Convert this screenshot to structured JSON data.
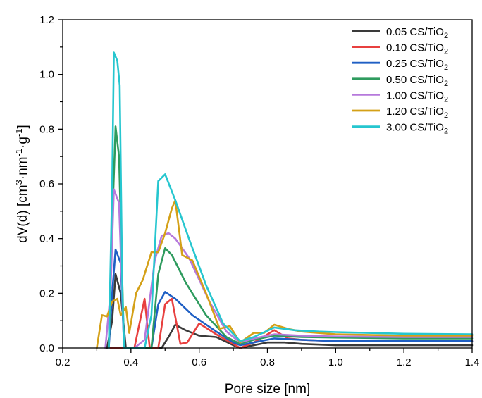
{
  "chart_data": {
    "type": "line",
    "xlabel": "Pore size [nm]",
    "ylabel": "dV(d) [cm³·nm⁻¹·g⁻¹]",
    "xlim": [
      0.2,
      1.4
    ],
    "ylim": [
      0.0,
      1.2
    ],
    "xticks": [
      "0.2",
      "0.4",
      "0.6",
      "0.8",
      "1.0",
      "1.2",
      "1.4"
    ],
    "yticks": [
      "0.0",
      "0.2",
      "0.4",
      "0.6",
      "0.8",
      "1.0",
      "1.2"
    ],
    "legend_position": "top-right",
    "grid": false,
    "series": [
      {
        "name": "0.05 CS/TiO2",
        "color": "#3a3a3a",
        "points": [
          [
            0.33,
            0.0
          ],
          [
            0.345,
            0.1
          ],
          [
            0.355,
            0.27
          ],
          [
            0.37,
            0.2
          ],
          [
            0.385,
            0.0
          ],
          [
            0.43,
            0.0
          ],
          [
            0.46,
            0.0
          ],
          [
            0.49,
            0.0
          ],
          [
            0.51,
            0.04
          ],
          [
            0.53,
            0.085
          ],
          [
            0.56,
            0.065
          ],
          [
            0.6,
            0.045
          ],
          [
            0.65,
            0.04
          ],
          [
            0.7,
            0.01
          ],
          [
            0.72,
            0.0
          ],
          [
            0.76,
            0.01
          ],
          [
            0.8,
            0.02
          ],
          [
            0.85,
            0.02
          ],
          [
            0.9,
            0.015
          ],
          [
            1.0,
            0.01
          ],
          [
            1.2,
            0.01
          ],
          [
            1.4,
            0.01
          ]
        ]
      },
      {
        "name": "0.10 CS/TiO2",
        "color": "#e8403f",
        "points": [
          [
            0.34,
            0.0
          ],
          [
            0.355,
            0.0
          ],
          [
            0.41,
            0.0
          ],
          [
            0.44,
            0.18
          ],
          [
            0.455,
            0.0
          ],
          [
            0.48,
            0.0
          ],
          [
            0.5,
            0.16
          ],
          [
            0.52,
            0.18
          ],
          [
            0.545,
            0.015
          ],
          [
            0.565,
            0.02
          ],
          [
            0.6,
            0.09
          ],
          [
            0.65,
            0.05
          ],
          [
            0.7,
            0.015
          ],
          [
            0.72,
            0.0
          ],
          [
            0.76,
            0.02
          ],
          [
            0.82,
            0.065
          ],
          [
            0.86,
            0.035
          ],
          [
            0.9,
            0.03
          ],
          [
            1.0,
            0.025
          ],
          [
            1.2,
            0.025
          ],
          [
            1.4,
            0.025
          ]
        ]
      },
      {
        "name": "0.25 CS/TiO2",
        "color": "#1f5fc4",
        "points": [
          [
            0.335,
            0.0
          ],
          [
            0.345,
            0.2
          ],
          [
            0.355,
            0.36
          ],
          [
            0.37,
            0.31
          ],
          [
            0.38,
            0.0
          ],
          [
            0.43,
            0.0
          ],
          [
            0.46,
            0.0
          ],
          [
            0.48,
            0.16
          ],
          [
            0.5,
            0.205
          ],
          [
            0.53,
            0.18
          ],
          [
            0.58,
            0.12
          ],
          [
            0.65,
            0.06
          ],
          [
            0.7,
            0.02
          ],
          [
            0.72,
            0.01
          ],
          [
            0.76,
            0.02
          ],
          [
            0.82,
            0.035
          ],
          [
            0.9,
            0.03
          ],
          [
            1.0,
            0.025
          ],
          [
            1.2,
            0.025
          ],
          [
            1.4,
            0.025
          ]
        ]
      },
      {
        "name": "0.50 CS/TiO2",
        "color": "#2e9b5e",
        "points": [
          [
            0.335,
            0.0
          ],
          [
            0.345,
            0.45
          ],
          [
            0.355,
            0.81
          ],
          [
            0.365,
            0.7
          ],
          [
            0.38,
            0.0
          ],
          [
            0.43,
            0.0
          ],
          [
            0.46,
            0.0
          ],
          [
            0.48,
            0.27
          ],
          [
            0.5,
            0.365
          ],
          [
            0.52,
            0.34
          ],
          [
            0.56,
            0.24
          ],
          [
            0.62,
            0.12
          ],
          [
            0.68,
            0.04
          ],
          [
            0.72,
            0.015
          ],
          [
            0.76,
            0.03
          ],
          [
            0.82,
            0.045
          ],
          [
            0.9,
            0.04
          ],
          [
            1.0,
            0.038
          ],
          [
            1.2,
            0.035
          ],
          [
            1.4,
            0.035
          ]
        ]
      },
      {
        "name": "1.00 CS/TiO2",
        "color": "#b679dc",
        "points": [
          [
            0.325,
            0.0
          ],
          [
            0.34,
            0.2
          ],
          [
            0.35,
            0.58
          ],
          [
            0.365,
            0.53
          ],
          [
            0.38,
            0.0
          ],
          [
            0.41,
            0.0
          ],
          [
            0.44,
            0.03
          ],
          [
            0.47,
            0.32
          ],
          [
            0.49,
            0.41
          ],
          [
            0.51,
            0.42
          ],
          [
            0.53,
            0.4
          ],
          [
            0.57,
            0.33
          ],
          [
            0.63,
            0.17
          ],
          [
            0.68,
            0.06
          ],
          [
            0.72,
            0.02
          ],
          [
            0.76,
            0.035
          ],
          [
            0.82,
            0.05
          ],
          [
            0.9,
            0.045
          ],
          [
            1.0,
            0.042
          ],
          [
            1.2,
            0.04
          ],
          [
            1.4,
            0.04
          ]
        ]
      },
      {
        "name": "1.20 CS/TiO2",
        "color": "#d4a017",
        "points": [
          [
            0.3,
            0.0
          ],
          [
            0.315,
            0.12
          ],
          [
            0.33,
            0.115
          ],
          [
            0.345,
            0.17
          ],
          [
            0.36,
            0.18
          ],
          [
            0.37,
            0.12
          ],
          [
            0.385,
            0.15
          ],
          [
            0.395,
            0.055
          ],
          [
            0.415,
            0.2
          ],
          [
            0.435,
            0.25
          ],
          [
            0.46,
            0.35
          ],
          [
            0.48,
            0.35
          ],
          [
            0.5,
            0.42
          ],
          [
            0.52,
            0.51
          ],
          [
            0.53,
            0.54
          ],
          [
            0.55,
            0.34
          ],
          [
            0.58,
            0.32
          ],
          [
            0.62,
            0.2
          ],
          [
            0.66,
            0.07
          ],
          [
            0.69,
            0.08
          ],
          [
            0.72,
            0.02
          ],
          [
            0.76,
            0.055
          ],
          [
            0.79,
            0.055
          ],
          [
            0.82,
            0.085
          ],
          [
            0.86,
            0.07
          ],
          [
            0.9,
            0.06
          ],
          [
            1.0,
            0.05
          ],
          [
            1.2,
            0.045
          ],
          [
            1.4,
            0.045
          ]
        ]
      },
      {
        "name": "3.00 CS/TiO2",
        "color": "#26c6cf",
        "points": [
          [
            0.335,
            0.0
          ],
          [
            0.345,
            0.6
          ],
          [
            0.35,
            1.08
          ],
          [
            0.36,
            1.05
          ],
          [
            0.367,
            0.96
          ],
          [
            0.375,
            0.2
          ],
          [
            0.38,
            0.0
          ],
          [
            0.44,
            0.0
          ],
          [
            0.46,
            0.12
          ],
          [
            0.48,
            0.61
          ],
          [
            0.5,
            0.635
          ],
          [
            0.53,
            0.54
          ],
          [
            0.57,
            0.4
          ],
          [
            0.62,
            0.23
          ],
          [
            0.67,
            0.09
          ],
          [
            0.72,
            0.025
          ],
          [
            0.76,
            0.04
          ],
          [
            0.82,
            0.075
          ],
          [
            0.88,
            0.065
          ],
          [
            0.95,
            0.06
          ],
          [
            1.0,
            0.058
          ],
          [
            1.2,
            0.052
          ],
          [
            1.4,
            0.05
          ]
        ]
      }
    ]
  }
}
